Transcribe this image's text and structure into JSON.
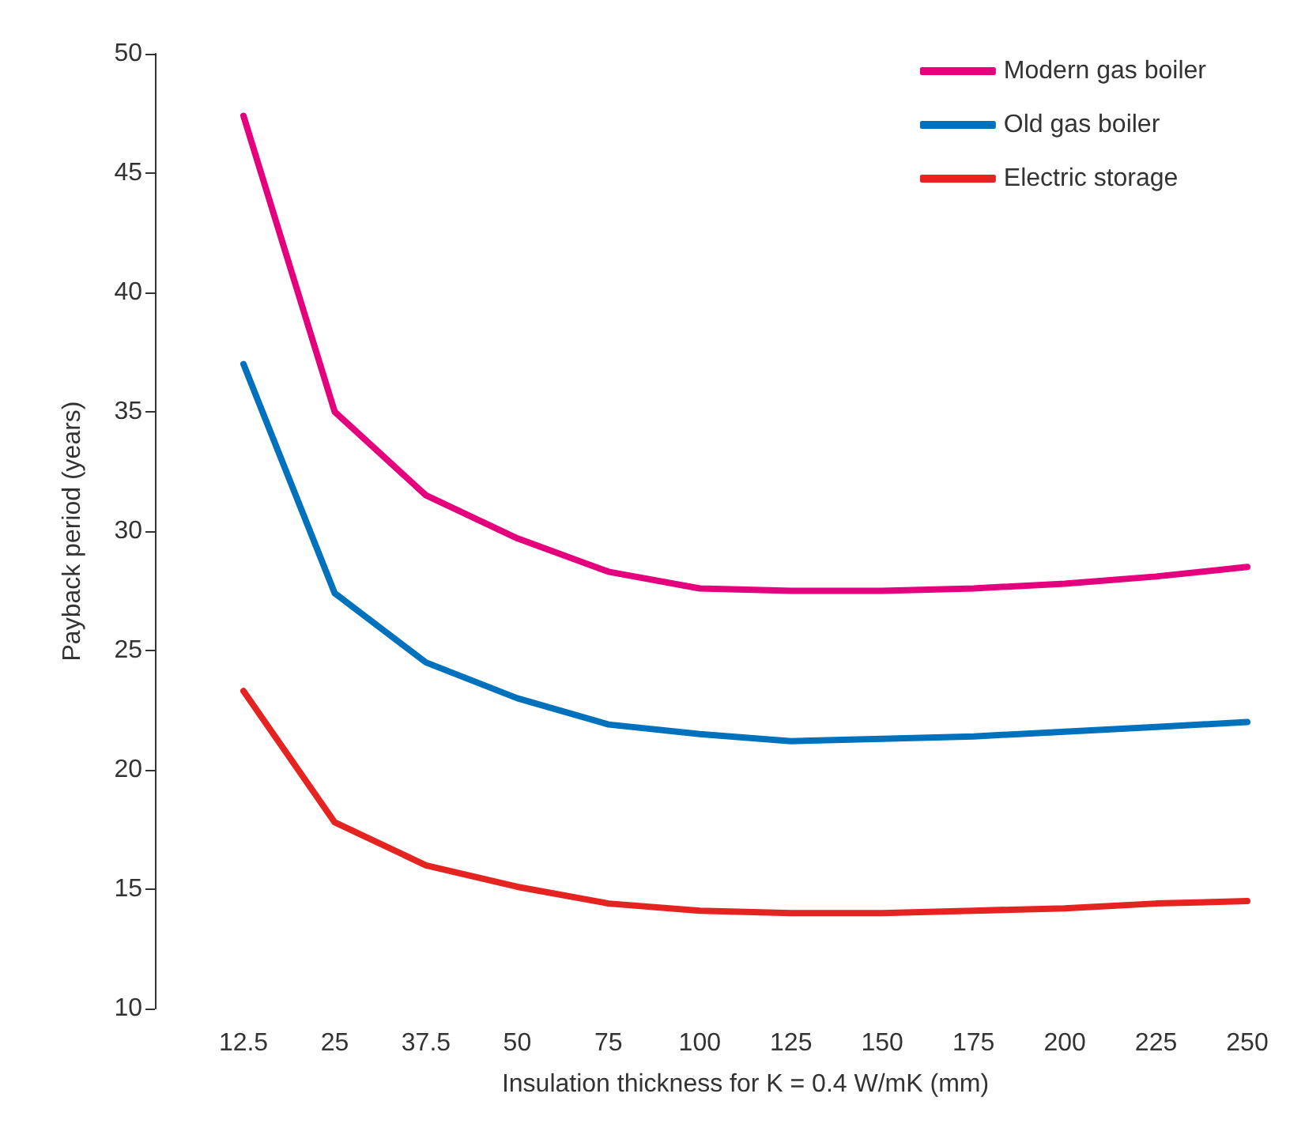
{
  "chart_data": {
    "type": "line",
    "xlabel": "Insulation thickness for K = 0.4 W/mK (mm)",
    "ylabel": "Payback period (years)",
    "categories": [
      "12.5",
      "25",
      "37.5",
      "50",
      "75",
      "100",
      "125",
      "150",
      "175",
      "200",
      "225",
      "250"
    ],
    "series": [
      {
        "name": "Modern gas boiler",
        "color": "#e5007e",
        "values": [
          47.4,
          35.0,
          31.5,
          29.7,
          28.3,
          27.6,
          27.5,
          27.5,
          27.6,
          27.8,
          28.1,
          28.5
        ]
      },
      {
        "name": "Old gas boiler",
        "color": "#0071bc",
        "values": [
          37.0,
          27.4,
          24.5,
          23.0,
          21.9,
          21.5,
          21.2,
          21.3,
          21.4,
          21.6,
          21.8,
          22.0
        ]
      },
      {
        "name": "Electric storage",
        "color": "#e52421",
        "values": [
          23.3,
          17.8,
          16.0,
          15.1,
          14.4,
          14.1,
          14.0,
          14.0,
          14.1,
          14.2,
          14.4,
          14.5
        ]
      }
    ],
    "ylim": [
      10,
      50
    ],
    "yticks": [
      10,
      15,
      20,
      25,
      30,
      35,
      40,
      45,
      50
    ],
    "grid": false,
    "legend": "top right",
    "marker": "none",
    "line_style": "solid"
  }
}
